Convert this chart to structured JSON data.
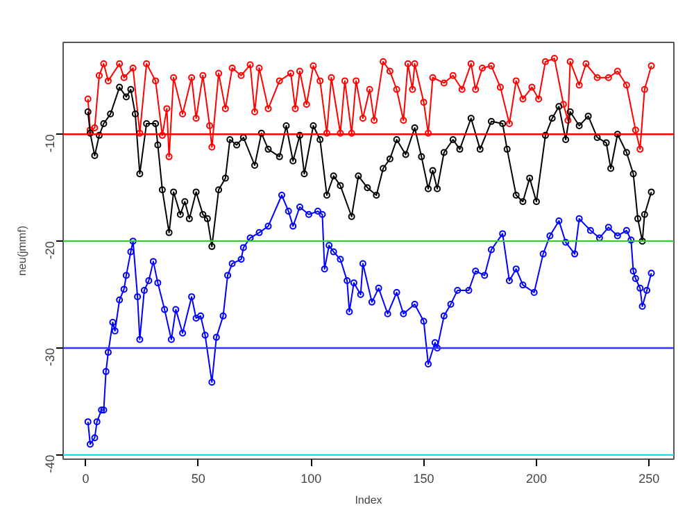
{
  "chart_data": {
    "type": "line",
    "xlabel": "Index",
    "ylabel": "neu(jmmf)",
    "xlim": [
      -10,
      261
    ],
    "ylim": [
      -40.4,
      -1.4
    ],
    "xticks": [
      0,
      50,
      100,
      150,
      200,
      250
    ],
    "yticks": [
      -10,
      -20,
      -30,
      -40
    ],
    "marker": "circle",
    "line_style": "solid",
    "grid": false,
    "series": [
      {
        "color": "#ff0000",
        "x": [
          1,
          2,
          4,
          6,
          8,
          10,
          15,
          17,
          21,
          24,
          27,
          31,
          34,
          36,
          37,
          39,
          43,
          47,
          49,
          52,
          55,
          56,
          59,
          62,
          65,
          69,
          73,
          75,
          77,
          81,
          86,
          91,
          93,
          95,
          98,
          101,
          104,
          107,
          109,
          113,
          115,
          118,
          120,
          123,
          126,
          128,
          132,
          135,
          138,
          141,
          143,
          145,
          146,
          150,
          152,
          154,
          159,
          163,
          167,
          171,
          173,
          176,
          180,
          184,
          188,
          191,
          194,
          198,
          201,
          204,
          208,
          212,
          214,
          215,
          219,
          222,
          227,
          232,
          236,
          240,
          244,
          246,
          248,
          251
        ],
        "values": [
          -6.7,
          -9.6,
          -9.4,
          -4.5,
          -3.4,
          -5,
          -3.4,
          -4.7,
          -3.8,
          -9.9,
          -3.4,
          -5,
          -10.1,
          -7.6,
          -12.1,
          -4.7,
          -8.1,
          -4.7,
          -8.5,
          -4.5,
          -9.2,
          -11.2,
          -4.3,
          -7.6,
          -3.8,
          -4.5,
          -3.5,
          -7.9,
          -3.8,
          -7.6,
          -5,
          -4.3,
          -7.6,
          -4.1,
          -7.2,
          -3.6,
          -5,
          -9.9,
          -4.7,
          -9.9,
          -5,
          -9.9,
          -5,
          -8.5,
          -5.8,
          -8.7,
          -3.2,
          -4.1,
          -5.8,
          -8.7,
          -3.4,
          -5.8,
          -3.4,
          -7,
          -9.9,
          -4.7,
          -5.2,
          -4.5,
          -5.8,
          -3.4,
          -5.8,
          -3.8,
          -3.6,
          -5.6,
          -9,
          -5,
          -6.7,
          -5.6,
          -6.7,
          -3.2,
          -2.9,
          -7.2,
          -8.7,
          -3.2,
          -5.4,
          -3.4,
          -4.7,
          -4.7,
          -4.1,
          -5.4,
          -9.6,
          -11.4,
          -5.8,
          -3.6
        ]
      },
      {
        "color": "#000000",
        "x": [
          1,
          2,
          4,
          6,
          8,
          11,
          15,
          18,
          20,
          22,
          24,
          27,
          31,
          32,
          34,
          37,
          39,
          42,
          44,
          46,
          49,
          52,
          54,
          56,
          59,
          62,
          64,
          67,
          70,
          75,
          78,
          81,
          86,
          89,
          92,
          95,
          97,
          101,
          104,
          107,
          110,
          113,
          118,
          121,
          125,
          129,
          132,
          135,
          138,
          142,
          146,
          149,
          152,
          154,
          156,
          159,
          163,
          166,
          171,
          175,
          180,
          185,
          187,
          191,
          194,
          197,
          200,
          204,
          207,
          210,
          213,
          215,
          219,
          223,
          227,
          231,
          233,
          236,
          240,
          243,
          245,
          247,
          248,
          251
        ],
        "values": [
          -7.9,
          -9.9,
          -12,
          -10.1,
          -9,
          -8.1,
          -5.6,
          -6.5,
          -5.8,
          -8.1,
          -13.7,
          -9,
          -9,
          -11,
          -15.2,
          -19.2,
          -15.4,
          -17.5,
          -16.3,
          -17.9,
          -15.4,
          -17.5,
          -17.9,
          -20.5,
          -15.2,
          -14.1,
          -10.5,
          -11,
          -10.3,
          -12.9,
          -9.9,
          -11.4,
          -12.1,
          -9.2,
          -12.5,
          -10.1,
          -13.7,
          -9.2,
          -10.5,
          -15.7,
          -13.9,
          -14.8,
          -17.7,
          -13.9,
          -15,
          -15.7,
          -13.2,
          -12.3,
          -10.5,
          -11.9,
          -9.4,
          -12.1,
          -15.1,
          -13.4,
          -15.1,
          -11.7,
          -10.5,
          -11.4,
          -8.5,
          -11.4,
          -8.8,
          -9,
          -11.4,
          -15.7,
          -16.3,
          -14.1,
          -16.3,
          -10.1,
          -8.5,
          -7.4,
          -10.5,
          -7.9,
          -9.2,
          -8.3,
          -10.3,
          -10.8,
          -13.2,
          -10,
          -11.7,
          -13.7,
          -17.9,
          -20,
          -17.5,
          -15.4
        ]
      },
      {
        "color": "#0000ff",
        "x": [
          1,
          2,
          4,
          5,
          7,
          8,
          9,
          10,
          12,
          13,
          15,
          17,
          18,
          20,
          21,
          23,
          24,
          26,
          28,
          30,
          32,
          35,
          38,
          40,
          43,
          47,
          49,
          51,
          53,
          56,
          58,
          61,
          63,
          65,
          69,
          70,
          73,
          77,
          81,
          87,
          90,
          92,
          95,
          99,
          103,
          105,
          106,
          108,
          110,
          113,
          116,
          117,
          119,
          122,
          123,
          127,
          130,
          134,
          138,
          141,
          146,
          150,
          152,
          155,
          156,
          159,
          162,
          165,
          170,
          173,
          177,
          180,
          185,
          188,
          191,
          194,
          199,
          203,
          206,
          210,
          213,
          217,
          219,
          224,
          228,
          232,
          236,
          240,
          242,
          243,
          244,
          246,
          247,
          249,
          251
        ],
        "values": [
          -36.9,
          -39,
          -38.4,
          -36.9,
          -35.8,
          -35.8,
          -32.2,
          -30.4,
          -27.6,
          -28.4,
          -25.5,
          -24.5,
          -23.2,
          -21,
          -20,
          -25.2,
          -29.2,
          -24.6,
          -23.7,
          -21.9,
          -23.9,
          -26.4,
          -29.2,
          -26.4,
          -28.6,
          -25.2,
          -27.2,
          -27,
          -28.8,
          -33.2,
          -29,
          -27,
          -23.2,
          -22.1,
          -21.7,
          -20.6,
          -19.7,
          -19.2,
          -18.6,
          -15.7,
          -17.2,
          -18.6,
          -16.8,
          -17.5,
          -17.2,
          -17.5,
          -22.6,
          -20.4,
          -21,
          -21.7,
          -23.7,
          -26.6,
          -23.9,
          -25,
          -22.1,
          -25.7,
          -24.4,
          -26.8,
          -24.8,
          -26.8,
          -25.9,
          -27.5,
          -31.5,
          -29.5,
          -30,
          -27,
          -25.9,
          -24.6,
          -24.6,
          -22.8,
          -23.2,
          -20.8,
          -19.3,
          -23.7,
          -22.6,
          -24.1,
          -24.8,
          -21.2,
          -19.5,
          -18.1,
          -20.1,
          -21.2,
          -17.9,
          -19,
          -19.7,
          -18.7,
          -19.5,
          -19,
          -19.9,
          -22.8,
          -23.5,
          -24.4,
          -26.1,
          -24.6,
          -23
        ]
      }
    ],
    "ref_lines": [
      {
        "axis": "y",
        "value": -10,
        "color": "#ff0000"
      },
      {
        "axis": "y",
        "value": -20,
        "color": "#33cc33"
      },
      {
        "axis": "y",
        "value": -30,
        "color": "#3333ff"
      },
      {
        "axis": "y",
        "value": -40,
        "color": "#00e5e5"
      }
    ]
  }
}
